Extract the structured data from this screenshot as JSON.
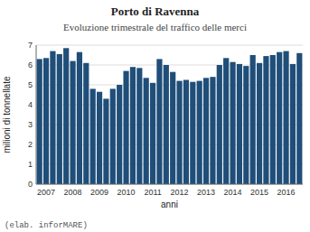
{
  "chart_data": {
    "type": "bar",
    "title": "Porto di Ravenna",
    "subtitle": "Evoluzione trimestrale del traffico delle merci",
    "xlabel": "anni",
    "ylabel": "milioni di tonnellate",
    "caption": "(elab. inforMARE)",
    "categories": [
      null,
      "2007",
      null,
      null,
      null,
      "2008",
      null,
      null,
      null,
      "2009",
      null,
      null,
      null,
      "2010",
      null,
      null,
      null,
      "2011",
      null,
      null,
      null,
      "2012",
      null,
      null,
      null,
      "2013",
      null,
      null,
      null,
      "2014",
      null,
      null,
      null,
      "2015",
      null,
      null,
      null,
      "2016",
      null,
      null
    ],
    "values": [
      6.3,
      6.35,
      6.7,
      6.55,
      6.85,
      6.2,
      6.65,
      6.1,
      4.8,
      4.65,
      4.3,
      4.8,
      5.0,
      5.7,
      5.9,
      5.85,
      5.35,
      5.1,
      6.3,
      6.0,
      5.65,
      5.2,
      5.25,
      5.15,
      5.2,
      5.35,
      5.4,
      6.0,
      6.35,
      6.15,
      6.05,
      5.95,
      6.5,
      6.1,
      6.45,
      6.5,
      6.65,
      6.7,
      6.05,
      6.6
    ],
    "color": "#1F4E79",
    "ylim": [
      0,
      7
    ],
    "yticks": [
      0,
      1,
      2,
      3,
      4,
      5,
      6,
      7
    ],
    "grid": true
  }
}
